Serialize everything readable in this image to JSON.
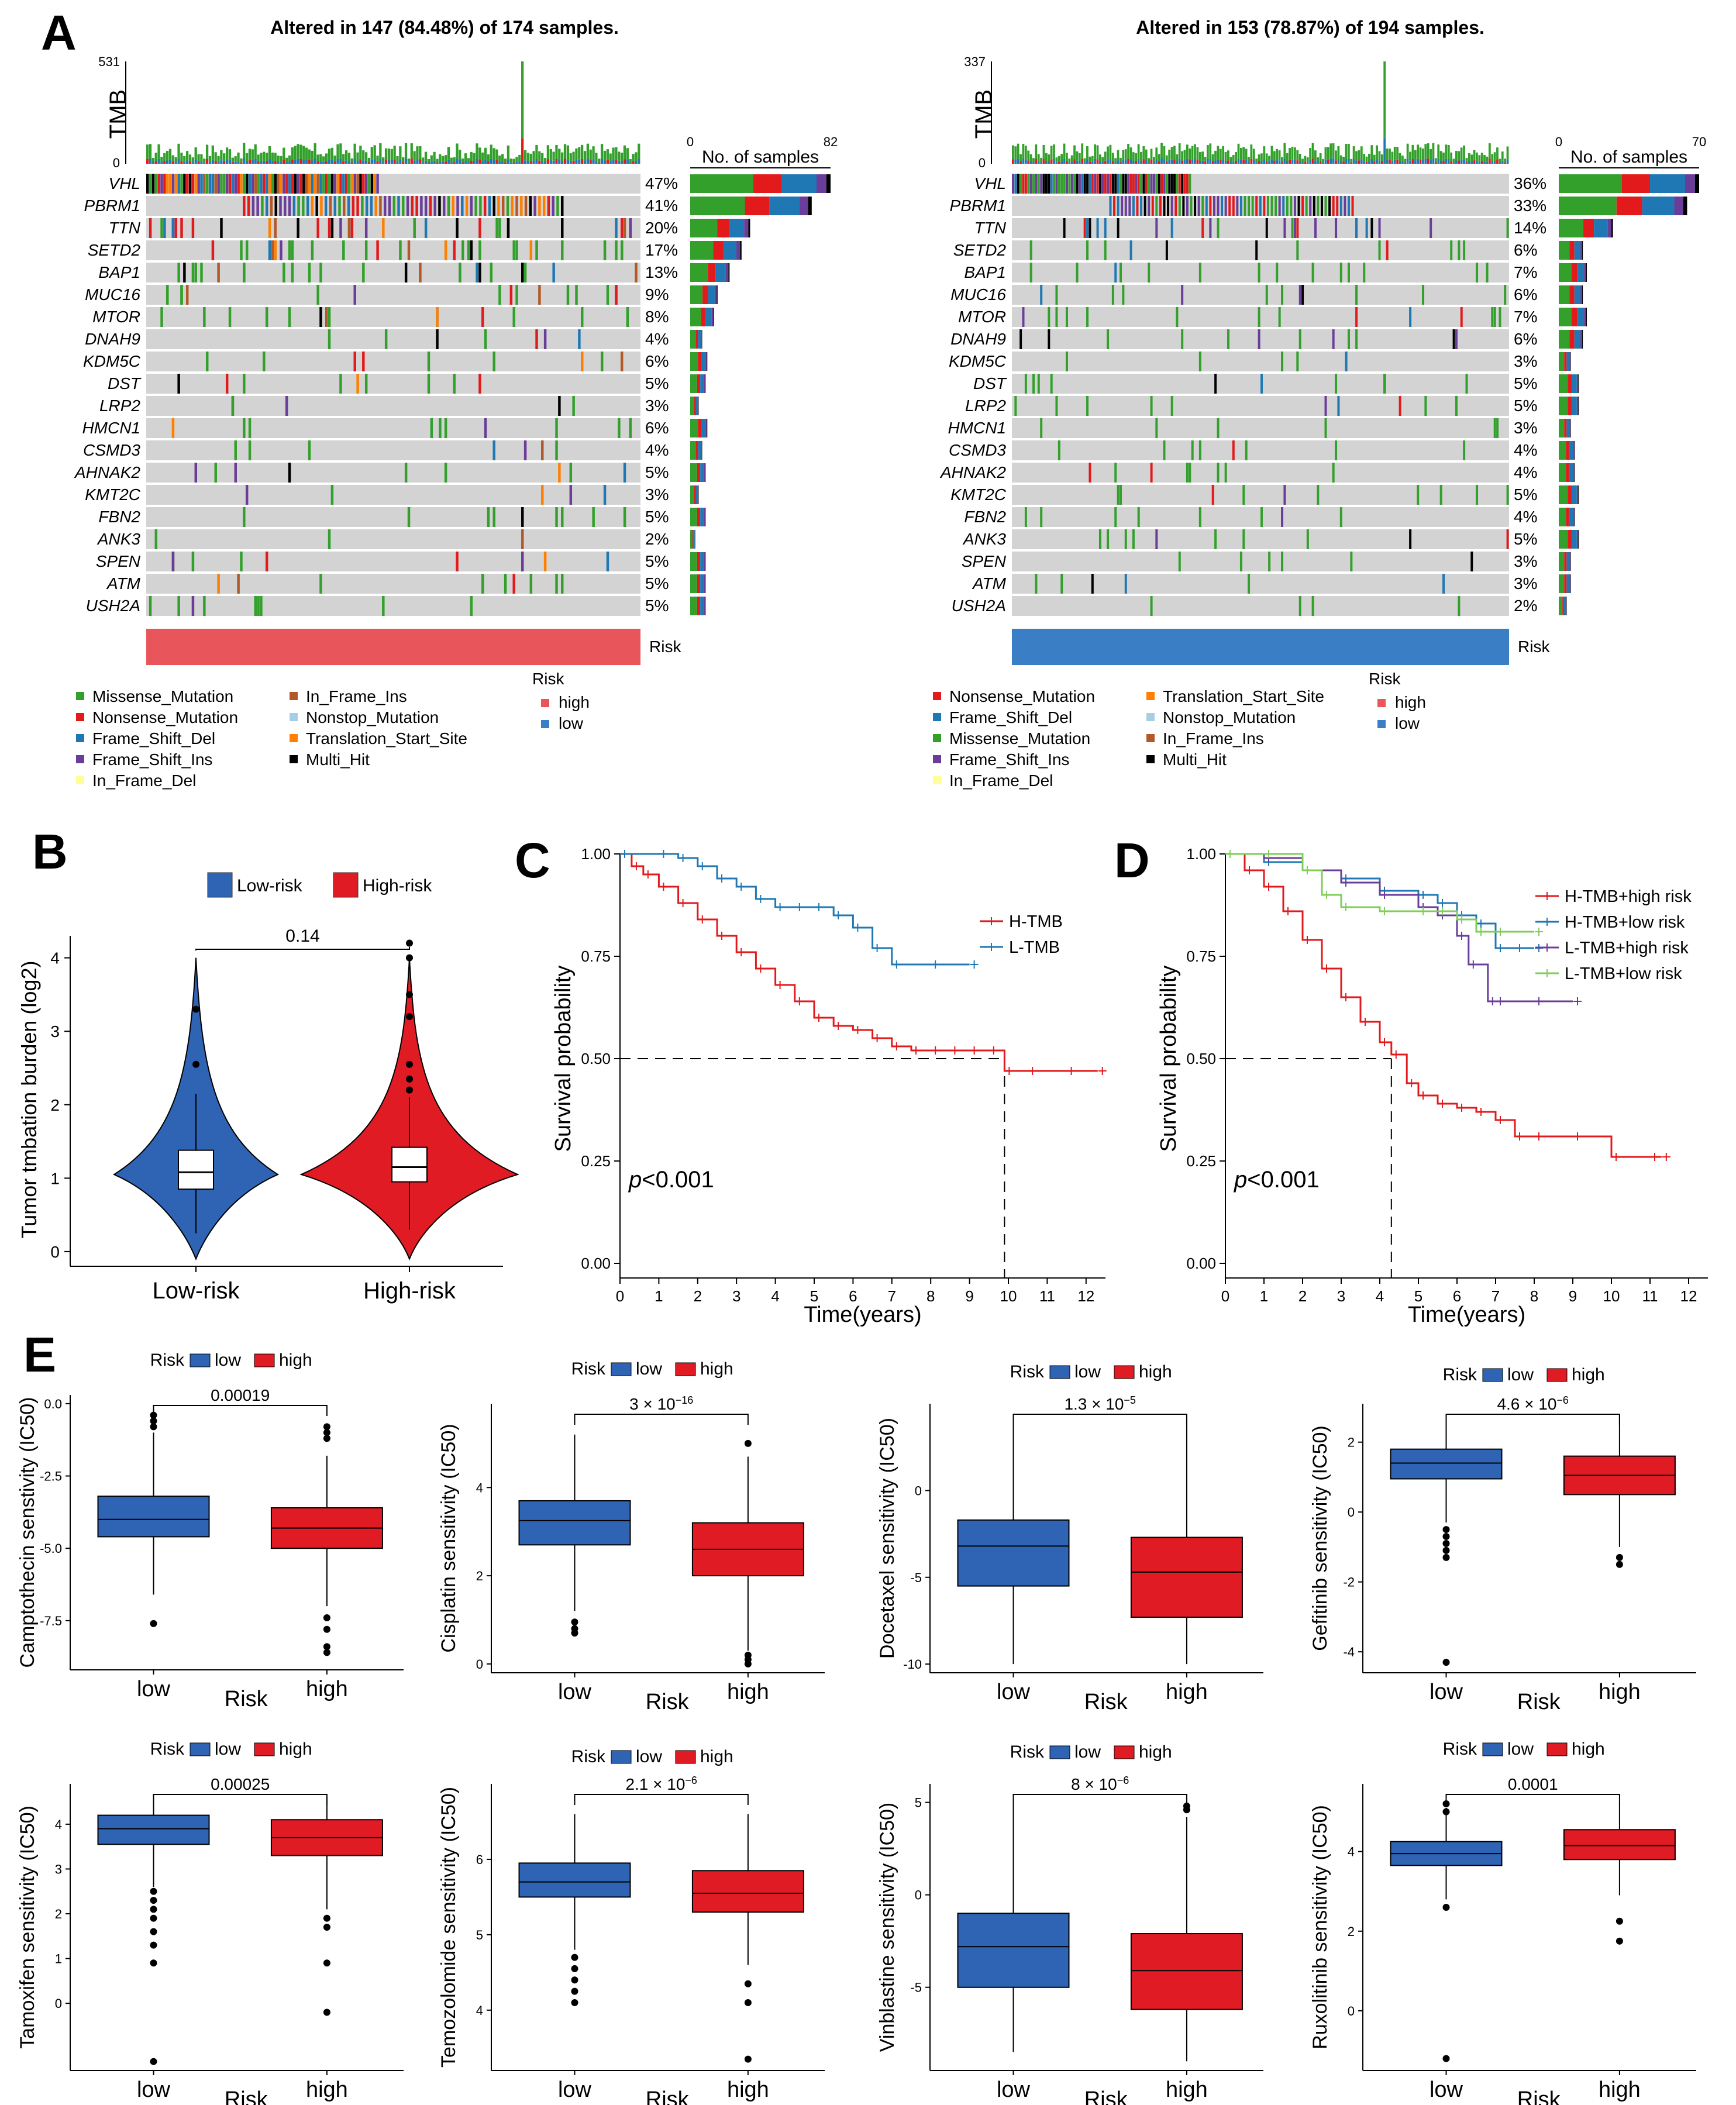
{
  "panel_labels": {
    "A": "A",
    "B": "B",
    "C": "C",
    "D": "D",
    "E": "E"
  },
  "colors": {
    "grey": "#d3d3d3",
    "missense": "#33a02c",
    "nonsense": "#e31a1c",
    "frame_shift_del": "#1f78b4",
    "frame_shift_ins": "#6a3d9a",
    "in_frame_del": "#ffff99",
    "in_frame_ins": "#b15928",
    "nonstop": "#a6cee3",
    "translation_start": "#ff7f00",
    "multi_hit": "#000000",
    "risk_high": "#e8555a",
    "risk_low": "#3a7ec5",
    "box_low": "#2f64b5",
    "box_high": "#e01b24"
  },
  "chart_data": [
    {
      "type": "heatmap",
      "panel": "A-left",
      "title": "Altered in 147 (84.48%) of 174 samples.",
      "tmb_label": "TMB",
      "tmb_ticks": [
        "531",
        "0"
      ],
      "bar_axis_title": "No. of samples",
      "bar_axis_ticks": [
        "0",
        "82"
      ],
      "genes": [
        "VHL",
        "PBRM1",
        "TTN",
        "SETD2",
        "BAP1",
        "MUC16",
        "MTOR",
        "DNAH9",
        "KDM5C",
        "DST",
        "LRP2",
        "HMCN1",
        "CSMD3",
        "AHNAK2",
        "KMT2C",
        "FBN2",
        "ANK3",
        "SPEN",
        "ATM",
        "USH2A"
      ],
      "percentages": [
        "47%",
        "41%",
        "20%",
        "17%",
        "13%",
        "9%",
        "8%",
        "4%",
        "6%",
        "5%",
        "3%",
        "6%",
        "4%",
        "5%",
        "3%",
        "5%",
        "2%",
        "5%",
        "5%",
        "5%"
      ],
      "sample_counts": [
        82,
        71,
        35,
        30,
        23,
        16,
        14,
        7,
        10,
        9,
        5,
        10,
        7,
        9,
        5,
        9,
        3,
        9,
        9,
        9
      ],
      "risk_label": "Risk",
      "risk_value": "high",
      "legend": [
        {
          "label": "Missense_Mutation",
          "color": "#33a02c"
        },
        {
          "label": "Nonsense_Mutation",
          "color": "#e31a1c"
        },
        {
          "label": "Frame_Shift_Del",
          "color": "#1f78b4"
        },
        {
          "label": "Frame_Shift_Ins",
          "color": "#6a3d9a"
        },
        {
          "label": "In_Frame_Del",
          "color": "#ffff99"
        },
        {
          "label": "In_Frame_Ins",
          "color": "#b15928"
        },
        {
          "label": "Nonstop_Mutation",
          "color": "#a6cee3"
        },
        {
          "label": "Translation_Start_Site",
          "color": "#ff7f00"
        },
        {
          "label": "Multi_Hit",
          "color": "#000000"
        }
      ],
      "risk_legend": {
        "title": "Risk",
        "items": [
          {
            "label": "high",
            "color": "#e8555a"
          },
          {
            "label": "low",
            "color": "#3a7ec5"
          }
        ]
      }
    },
    {
      "type": "heatmap",
      "panel": "A-right",
      "title": "Altered in 153 (78.87%) of 194 samples.",
      "tmb_label": "TMB",
      "tmb_ticks": [
        "337",
        "0"
      ],
      "bar_axis_title": "No. of samples",
      "bar_axis_ticks": [
        "0",
        "70"
      ],
      "genes": [
        "VHL",
        "PBRM1",
        "TTN",
        "SETD2",
        "BAP1",
        "MUC16",
        "MTOR",
        "DNAH9",
        "KDM5C",
        "DST",
        "LRP2",
        "HMCN1",
        "CSMD3",
        "AHNAK2",
        "KMT2C",
        "FBN2",
        "ANK3",
        "SPEN",
        "ATM",
        "USH2A"
      ],
      "percentages": [
        "36%",
        "33%",
        "14%",
        "6%",
        "7%",
        "6%",
        "7%",
        "6%",
        "3%",
        "5%",
        "5%",
        "3%",
        "4%",
        "4%",
        "5%",
        "4%",
        "5%",
        "3%",
        "3%",
        "2%"
      ],
      "sample_counts": [
        70,
        64,
        27,
        12,
        14,
        12,
        14,
        12,
        6,
        10,
        10,
        6,
        8,
        8,
        10,
        8,
        10,
        6,
        6,
        4
      ],
      "risk_label": "Risk",
      "risk_value": "low",
      "legend": [
        {
          "label": "Nonsense_Mutation",
          "color": "#e31a1c"
        },
        {
          "label": "Frame_Shift_Del",
          "color": "#1f78b4"
        },
        {
          "label": "Missense_Mutation",
          "color": "#33a02c"
        },
        {
          "label": "Frame_Shift_Ins",
          "color": "#6a3d9a"
        },
        {
          "label": "In_Frame_Del",
          "color": "#ffff99"
        },
        {
          "label": "Translation_Start_Site",
          "color": "#ff7f00"
        },
        {
          "label": "Nonstop_Mutation",
          "color": "#a6cee3"
        },
        {
          "label": "In_Frame_Ins",
          "color": "#b15928"
        },
        {
          "label": "Multi_Hit",
          "color": "#000000"
        }
      ],
      "risk_legend": {
        "title": "Risk",
        "items": [
          {
            "label": "high",
            "color": "#e8555a"
          },
          {
            "label": "low",
            "color": "#3a7ec5"
          }
        ]
      }
    },
    {
      "type": "violin",
      "panel": "B",
      "ylabel": "Tumor tmbation burden (log2)",
      "categories": [
        "Low-risk",
        "High-risk"
      ],
      "legend": [
        {
          "label": "Low-risk",
          "color": "#2f64b5"
        },
        {
          "label": "High-risk",
          "color": "#e01b24"
        }
      ],
      "pvalue": "0.14",
      "ylim": [
        -0.2,
        4.3
      ],
      "yticks": [
        0,
        1,
        2,
        3,
        4
      ],
      "stats": [
        {
          "q1": 0.85,
          "median": 1.08,
          "q3": 1.38,
          "wlo": 0.25,
          "whi": 2.15,
          "outliers": [
            2.55,
            3.3
          ]
        },
        {
          "q1": 0.95,
          "median": 1.15,
          "q3": 1.42,
          "wlo": 0.3,
          "whi": 2.1,
          "outliers": [
            2.2,
            2.35,
            2.55,
            3.2,
            3.5,
            4.0,
            4.2
          ]
        }
      ]
    },
    {
      "type": "line",
      "panel": "C",
      "xlabel": "Time(years)",
      "ylabel": "Survival probability",
      "annotation": "p<0.001",
      "xlim": [
        0,
        12.5
      ],
      "ylim": [
        0,
        1
      ],
      "xticks": [
        0,
        1,
        2,
        3,
        4,
        5,
        6,
        7,
        8,
        9,
        10,
        11,
        12
      ],
      "yticks": [
        "0.00",
        "0.25",
        "0.50",
        "0.75",
        "1.00"
      ],
      "median_line": {
        "x": 9.9,
        "y": 0.5
      },
      "series": [
        {
          "name": "H-TMB",
          "color": "#e31a1c",
          "x": [
            0,
            0.3,
            0.6,
            1,
            1.5,
            2,
            2.5,
            3,
            3.5,
            4,
            4.5,
            5,
            5.5,
            6,
            6.5,
            7,
            7.5,
            8,
            8.5,
            9,
            9.5,
            9.9,
            10.5,
            11.5,
            12.3
          ],
          "y": [
            1,
            0.97,
            0.95,
            0.92,
            0.88,
            0.84,
            0.8,
            0.76,
            0.72,
            0.68,
            0.64,
            0.6,
            0.58,
            0.57,
            0.55,
            0.53,
            0.52,
            0.52,
            0.52,
            0.52,
            0.52,
            0.47,
            0.47,
            0.47,
            0.47
          ]
        },
        {
          "name": "L-TMB",
          "color": "#1f78b4",
          "x": [
            0,
            1,
            1.5,
            2,
            2.5,
            3,
            3.5,
            4,
            4.5,
            5,
            5.5,
            6,
            6.5,
            7,
            8,
            9
          ],
          "y": [
            1,
            1,
            0.99,
            0.97,
            0.94,
            0.92,
            0.89,
            0.87,
            0.87,
            0.87,
            0.85,
            0.82,
            0.77,
            0.73,
            0.73,
            0.73
          ]
        }
      ]
    },
    {
      "type": "line",
      "panel": "D",
      "xlabel": "Time(years)",
      "ylabel": "Survival probability",
      "annotation": "p<0.001",
      "xlim": [
        0,
        12.5
      ],
      "ylim": [
        0,
        1
      ],
      "xticks": [
        0,
        1,
        2,
        3,
        4,
        5,
        6,
        7,
        8,
        9,
        10,
        11,
        12
      ],
      "yticks": [
        "0.00",
        "0.25",
        "0.50",
        "0.75",
        "1.00"
      ],
      "median_line": {
        "x": 4.3,
        "y": 0.5
      },
      "series": [
        {
          "name": "H-TMB+high risk",
          "color": "#e31a1c",
          "x": [
            0,
            0.5,
            1,
            1.5,
            2,
            2.5,
            3,
            3.5,
            4,
            4.3,
            4.7,
            5,
            5.5,
            6,
            6.5,
            7,
            7.5,
            8,
            9,
            10,
            11,
            11.3
          ],
          "y": [
            1,
            0.96,
            0.92,
            0.86,
            0.79,
            0.72,
            0.65,
            0.59,
            0.54,
            0.51,
            0.44,
            0.41,
            0.39,
            0.38,
            0.37,
            0.35,
            0.31,
            0.31,
            0.31,
            0.26,
            0.26,
            0.26
          ]
        },
        {
          "name": "H-TMB+low risk",
          "color": "#1f78b4",
          "x": [
            0,
            1,
            2,
            3,
            4,
            5,
            5.5,
            6,
            6.5,
            7,
            7.5,
            8
          ],
          "y": [
            1,
            0.98,
            0.96,
            0.94,
            0.91,
            0.9,
            0.88,
            0.85,
            0.83,
            0.77,
            0.77,
            0.77
          ]
        },
        {
          "name": "L-TMB+high risk",
          "color": "#6a3d9a",
          "x": [
            0,
            1,
            2,
            3,
            4,
            5,
            5.5,
            6,
            6.3,
            6.8,
            7,
            8,
            9
          ],
          "y": [
            1,
            0.99,
            0.96,
            0.93,
            0.9,
            0.87,
            0.85,
            0.8,
            0.73,
            0.64,
            0.64,
            0.64,
            0.64
          ]
        },
        {
          "name": "L-TMB+low risk",
          "color": "#7fce5a",
          "x": [
            0,
            1,
            2,
            2.5,
            3,
            4,
            5,
            5.5,
            6,
            6.5,
            7,
            8
          ],
          "y": [
            1,
            1,
            0.96,
            0.9,
            0.87,
            0.86,
            0.86,
            0.86,
            0.84,
            0.81,
            0.81,
            0.81
          ]
        }
      ]
    },
    {
      "type": "box",
      "panel": "E1",
      "ylabel": "Camptothecin senstivity (IC50)",
      "xlabel": "Risk",
      "categories": [
        "low",
        "high"
      ],
      "legend_title": "Risk",
      "legend": [
        "low",
        "high"
      ],
      "pvalue": "0.00019",
      "ylim": [
        -9.2,
        0.3
      ],
      "yticks": [
        0.0,
        -2.5,
        -5.0,
        -7.5
      ],
      "ytick_labels": [
        "0.0",
        "-2.5",
        "-5.0",
        "-7.5"
      ],
      "stats": [
        {
          "q1": -4.6,
          "median": -4.0,
          "q3": -3.2,
          "wlo": -6.6,
          "whi": -1.0,
          "outliers": [
            -0.4,
            -0.6,
            -0.8,
            -7.6
          ]
        },
        {
          "q1": -5.0,
          "median": -4.3,
          "q3": -3.6,
          "wlo": -7.0,
          "whi": -1.8,
          "outliers": [
            -0.8,
            -1.0,
            -1.2,
            -7.4,
            -7.8,
            -8.4,
            -8.6
          ]
        }
      ]
    },
    {
      "type": "box",
      "panel": "E2",
      "ylabel": "Cisplatin sensitivity (IC50)",
      "xlabel": "Risk",
      "categories": [
        "low",
        "high"
      ],
      "legend_title": "Risk",
      "legend": [
        "low",
        "high"
      ],
      "pvalue": "3 × 10",
      "pvalue_exp": "−16",
      "ylim": [
        -0.2,
        5.9
      ],
      "yticks": [
        0,
        2,
        4
      ],
      "ytick_labels": [
        "0",
        "2",
        "4"
      ],
      "stats": [
        {
          "q1": 2.7,
          "median": 3.25,
          "q3": 3.7,
          "wlo": 1.2,
          "whi": 5.2,
          "outliers": [
            0.7,
            0.8,
            0.95
          ]
        },
        {
          "q1": 2.0,
          "median": 2.6,
          "q3": 3.2,
          "wlo": 0.3,
          "whi": 4.7,
          "outliers": [
            0.0,
            0.1,
            0.2,
            5.0
          ]
        }
      ]
    },
    {
      "type": "box",
      "panel": "E3",
      "ylabel": "Docetaxel sensitivity (IC50)",
      "xlabel": "Risk",
      "categories": [
        "low",
        "high"
      ],
      "legend_title": "Risk",
      "legend": [
        "low",
        "high"
      ],
      "pvalue": "1.3 × 10",
      "pvalue_exp": "−5",
      "ylim": [
        -10.5,
        5.0
      ],
      "yticks": [
        0,
        -5,
        -10
      ],
      "ytick_labels": [
        "0",
        "-5",
        "-10"
      ],
      "stats": [
        {
          "q1": -5.5,
          "median": -3.2,
          "q3": -1.7,
          "wlo": -10.0,
          "whi": 4.0,
          "outliers": []
        },
        {
          "q1": -7.3,
          "median": -4.7,
          "q3": -2.7,
          "wlo": -10.0,
          "whi": 4.0,
          "outliers": []
        }
      ]
    },
    {
      "type": "box",
      "panel": "E4",
      "ylabel": "Gefitinib sensitivity (IC50)",
      "xlabel": "Risk",
      "categories": [
        "low",
        "high"
      ],
      "legend_title": "Risk",
      "legend": [
        "low",
        "high"
      ],
      "pvalue": "4.6 × 10",
      "pvalue_exp": "−6",
      "ylim": [
        -4.6,
        3.1
      ],
      "yticks": [
        2,
        0,
        -2,
        -4
      ],
      "ytick_labels": [
        "2",
        "0",
        "-2",
        "-4"
      ],
      "stats": [
        {
          "q1": 0.95,
          "median": 1.4,
          "q3": 1.8,
          "wlo": -0.3,
          "whi": 2.8,
          "outliers": [
            -0.5,
            -0.7,
            -0.9,
            -1.1,
            -1.3,
            -4.3
          ]
        },
        {
          "q1": 0.5,
          "median": 1.05,
          "q3": 1.6,
          "wlo": -1.0,
          "whi": 2.8,
          "outliers": [
            -1.3,
            -1.5
          ]
        }
      ]
    },
    {
      "type": "box",
      "panel": "E5",
      "ylabel": "Tamoxifen sensitivity (IC50)",
      "xlabel": "Risk",
      "categories": [
        "low",
        "high"
      ],
      "legend_title": "Risk",
      "legend": [
        "low",
        "high"
      ],
      "pvalue": "0.00025",
      "ylim": [
        -1.5,
        4.9
      ],
      "yticks": [
        0,
        1,
        2,
        3,
        4
      ],
      "ytick_labels": [
        "0",
        "1",
        "2",
        "3",
        "4"
      ],
      "stats": [
        {
          "q1": 3.55,
          "median": 3.9,
          "q3": 4.2,
          "wlo": 2.6,
          "whi": 4.6,
          "outliers": [
            2.5,
            2.3,
            2.1,
            1.9,
            1.6,
            1.3,
            0.9,
            -1.3
          ]
        },
        {
          "q1": 3.3,
          "median": 3.7,
          "q3": 4.1,
          "wlo": 2.1,
          "whi": 4.6,
          "outliers": [
            1.9,
            1.7,
            0.9,
            -0.2
          ]
        }
      ]
    },
    {
      "type": "box",
      "panel": "E6",
      "ylabel": "Temozolomide sensitivity (IC50)",
      "xlabel": "Risk",
      "categories": [
        "low",
        "high"
      ],
      "legend_title": "Risk",
      "legend": [
        "low",
        "high"
      ],
      "pvalue": "2.1 × 10",
      "pvalue_exp": "−6",
      "ylim": [
        3.2,
        7.0
      ],
      "yticks": [
        4,
        5,
        6
      ],
      "ytick_labels": [
        "4",
        "5",
        "6"
      ],
      "stats": [
        {
          "q1": 5.5,
          "median": 5.7,
          "q3": 5.95,
          "wlo": 4.8,
          "whi": 6.6,
          "outliers": [
            4.7,
            4.55,
            4.4,
            4.25,
            4.1
          ]
        },
        {
          "q1": 5.3,
          "median": 5.55,
          "q3": 5.85,
          "wlo": 4.6,
          "whi": 6.6,
          "outliers": [
            4.35,
            4.1,
            3.35
          ]
        }
      ]
    },
    {
      "type": "box",
      "panel": "E7",
      "ylabel": "Vinblastine sensitivity (IC50)",
      "xlabel": "Risk",
      "categories": [
        "low",
        "high"
      ],
      "legend_title": "Risk",
      "legend": [
        "low",
        "high"
      ],
      "pvalue": "8 × 10",
      "pvalue_exp": "−6",
      "ylim": [
        -9.5,
        6.0
      ],
      "yticks": [
        5,
        0,
        -5
      ],
      "ytick_labels": [
        "5",
        "0",
        "-5"
      ],
      "stats": [
        {
          "q1": -5.0,
          "median": -2.8,
          "q3": -1.0,
          "wlo": -8.5,
          "whi": 5.0,
          "outliers": []
        },
        {
          "q1": -6.2,
          "median": -4.1,
          "q3": -2.1,
          "wlo": -9.0,
          "whi": 4.2,
          "outliers": [
            4.6,
            4.8
          ]
        }
      ]
    },
    {
      "type": "box",
      "panel": "E8",
      "ylabel": "Ruxolitinib sensitivity (IC50)",
      "xlabel": "Risk",
      "categories": [
        "low",
        "high"
      ],
      "legend_title": "Risk",
      "legend": [
        "low",
        "high"
      ],
      "pvalue": "0.0001",
      "ylim": [
        -1.5,
        5.7
      ],
      "yticks": [
        0,
        2,
        4
      ],
      "ytick_labels": [
        "0",
        "2",
        "4"
      ],
      "stats": [
        {
          "q1": 3.65,
          "median": 3.95,
          "q3": 4.25,
          "wlo": 2.8,
          "whi": 5.1,
          "outliers": [
            2.6,
            5.0,
            5.2,
            -1.2
          ]
        },
        {
          "q1": 3.8,
          "median": 4.15,
          "q3": 4.55,
          "wlo": 2.9,
          "whi": 5.2,
          "outliers": [
            2.25,
            1.75
          ]
        }
      ]
    }
  ]
}
